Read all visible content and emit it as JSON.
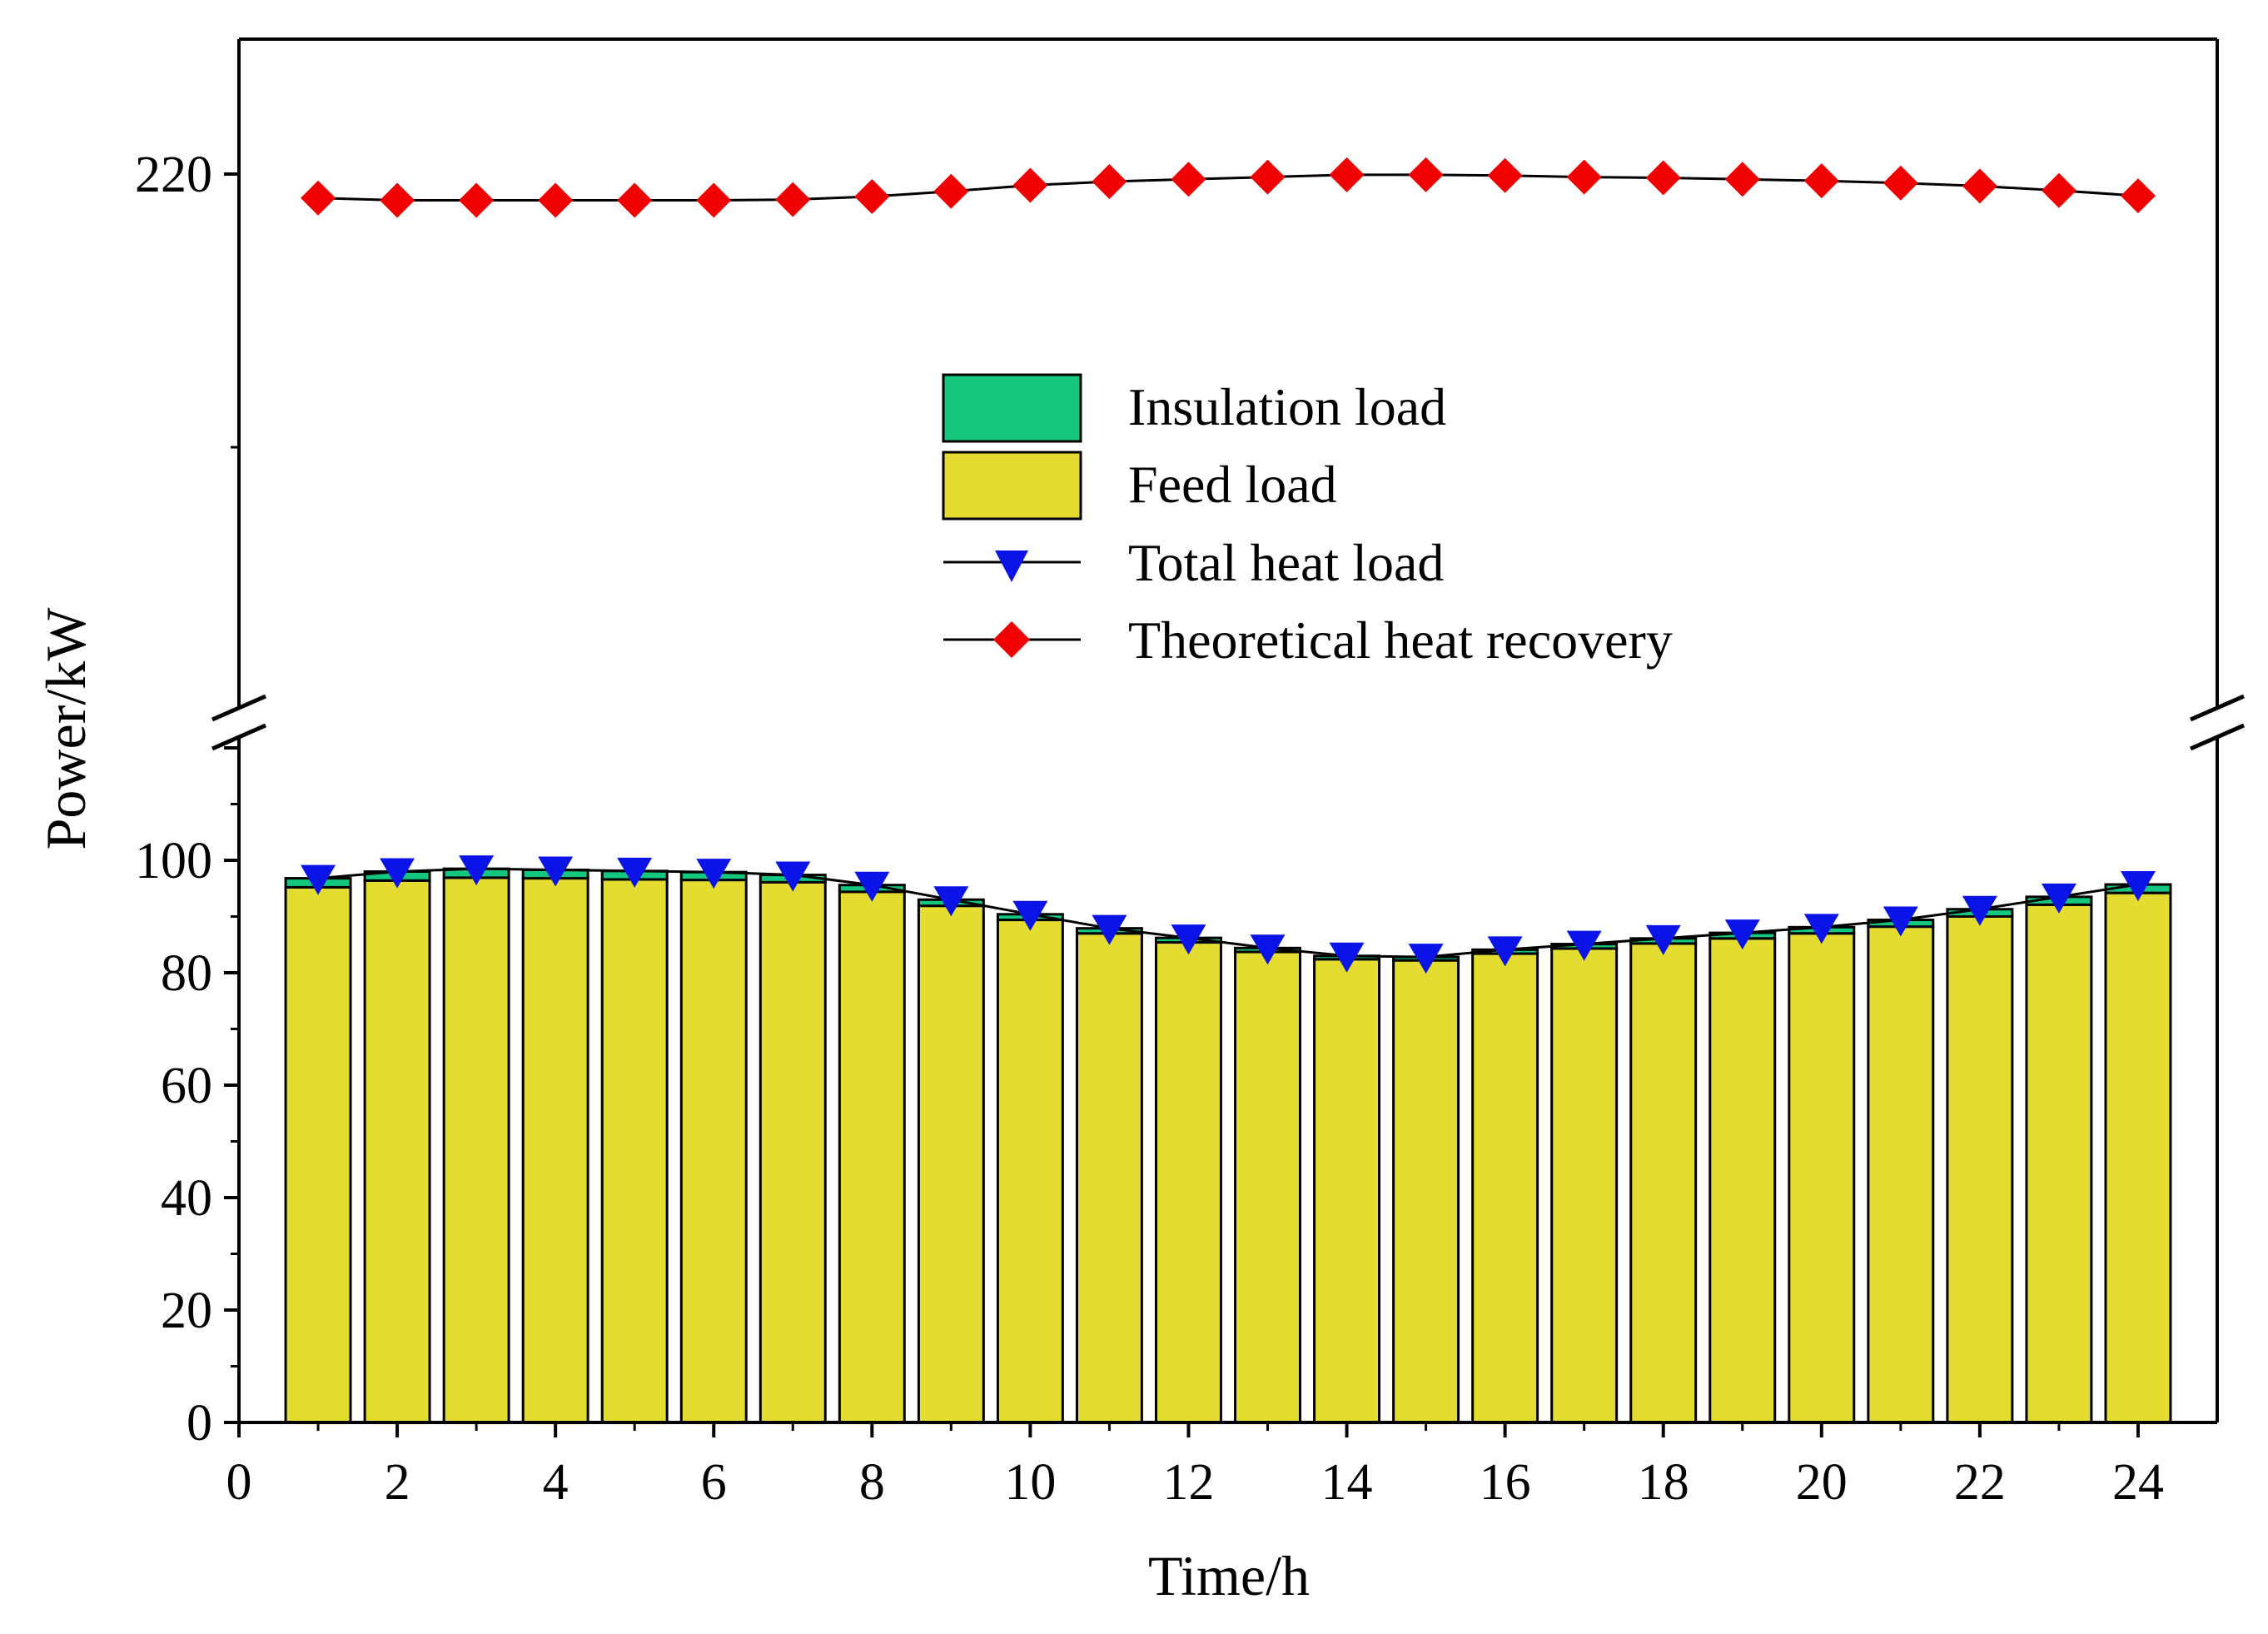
{
  "chart_data": {
    "type": "bar",
    "xlabel": "Time/h",
    "ylabel": "Power/kW",
    "x": [
      1,
      2,
      3,
      4,
      5,
      6,
      7,
      8,
      9,
      10,
      11,
      12,
      13,
      14,
      15,
      16,
      17,
      18,
      19,
      20,
      21,
      22,
      23,
      24
    ],
    "xlim": [
      0,
      25
    ],
    "x_ticks": [
      "0",
      "2",
      "4",
      "6",
      "8",
      "10",
      "12",
      "14",
      "16",
      "18",
      "20",
      "22",
      "24"
    ],
    "y_axis_break": true,
    "lower_ylim": [
      0,
      120
    ],
    "lower_y_ticks": [
      "0",
      "20",
      "40",
      "60",
      "80",
      "100"
    ],
    "upper_y_ticks": [
      "220"
    ],
    "series": [
      {
        "name": "Insulation load",
        "kind": "bar-stacked",
        "color": "#14c77f",
        "values": [
          1.6,
          1.6,
          1.6,
          1.5,
          1.5,
          1.4,
          1.3,
          1.2,
          1.1,
          1.0,
          0.9,
          0.8,
          0.7,
          0.6,
          0.6,
          0.7,
          0.8,
          0.9,
          1.0,
          1.1,
          1.2,
          1.3,
          1.4,
          1.5
        ]
      },
      {
        "name": "Feed load",
        "kind": "bar-stacked",
        "color": "#e4dc30",
        "values": [
          95.2,
          96.4,
          96.9,
          96.8,
          96.6,
          96.5,
          96.1,
          94.4,
          91.9,
          89.4,
          87.0,
          85.4,
          83.7,
          82.4,
          82.2,
          83.4,
          84.3,
          85.2,
          86.1,
          87.0,
          88.2,
          90.0,
          92.1,
          94.2
        ]
      },
      {
        "name": "Total heat load",
        "kind": "line",
        "marker": "triangle-down",
        "color": "#0a14e6",
        "values": [
          96.8,
          98.0,
          98.5,
          98.3,
          98.1,
          97.9,
          97.4,
          95.6,
          93.0,
          90.4,
          87.9,
          86.2,
          84.4,
          83.0,
          82.8,
          84.1,
          85.1,
          86.1,
          87.1,
          88.1,
          89.4,
          91.3,
          93.5,
          95.7
        ]
      },
      {
        "name": "Theoretical heat recovery",
        "kind": "line",
        "marker": "diamond",
        "color": "#f00000",
        "values": [
          216.8,
          216.5,
          216.5,
          216.5,
          216.5,
          216.5,
          216.6,
          217.0,
          217.7,
          218.5,
          219.0,
          219.3,
          219.6,
          219.9,
          219.9,
          219.8,
          219.6,
          219.5,
          219.3,
          219.1,
          218.8,
          218.4,
          217.8,
          217.1
        ]
      }
    ]
  }
}
